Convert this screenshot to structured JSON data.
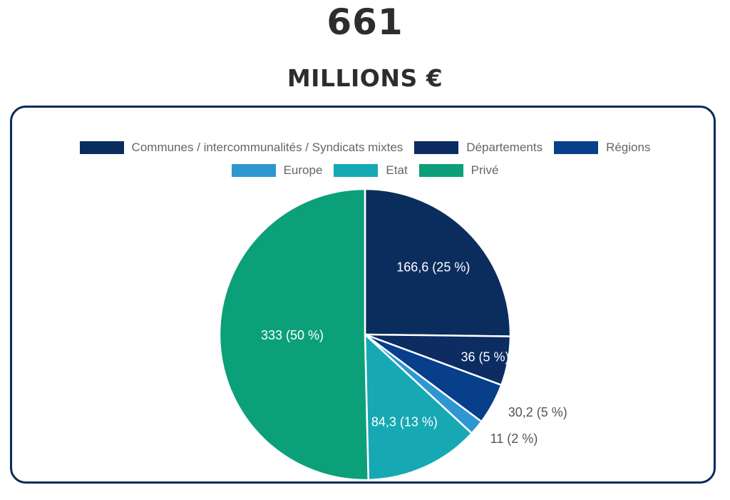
{
  "header": {
    "total": "661",
    "unit": "MILLIONS €"
  },
  "chart_data": {
    "type": "pie",
    "legend_position": "top",
    "slices": [
      {
        "label": "Communes / intercommunalités / Syndicats mixtes",
        "value": 166.6,
        "percent": 25,
        "display": "166,6 (25 %)",
        "color": "#0b2d5e"
      },
      {
        "label": "Départements",
        "value": 36,
        "percent": 5,
        "display": "36 (5 %)",
        "color": "#0c2c62"
      },
      {
        "label": "Régions",
        "value": 30.2,
        "percent": 5,
        "display": "30,2 (5 %)",
        "color": "#073f8b"
      },
      {
        "label": "Europe",
        "value": 11,
        "percent": 2,
        "display": "11 (2 %)",
        "color": "#2e97d1"
      },
      {
        "label": "Etat",
        "value": 84.3,
        "percent": 13,
        "display": "84,3 (13 %)",
        "color": "#16a9b3"
      },
      {
        "label": "Privé",
        "value": 333,
        "percent": 50,
        "display": "333 (50 %)",
        "color": "#0ba079"
      }
    ]
  }
}
